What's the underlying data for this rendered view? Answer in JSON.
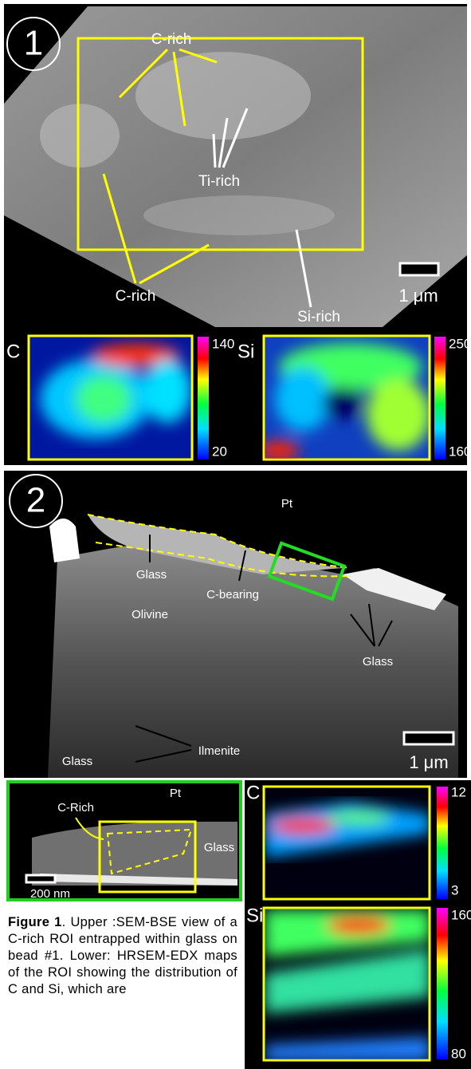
{
  "panel1": {
    "label": "1",
    "annotations": [
      "C-rich",
      "Ti-rich",
      "C-rich",
      "Si-rich"
    ],
    "scale_bar": "1 μm",
    "maps": [
      {
        "element": "C",
        "max": "140",
        "min": "20"
      },
      {
        "element": "Si",
        "max": "250",
        "min": "160"
      }
    ]
  },
  "panel2": {
    "label": "2",
    "annotations": [
      "Pt",
      "Glass",
      "C-bearing",
      "Olivine",
      "Glass",
      "Ilmenite",
      "Glass"
    ],
    "scale_bar": "1 μm",
    "inset": {
      "annotations": [
        "Pt",
        "C-Rich",
        "Glass"
      ],
      "scale_bar": "200 nm"
    },
    "maps": [
      {
        "element": "C",
        "max": "12",
        "min": "3"
      },
      {
        "element": "Si",
        "max": "160",
        "min": "80"
      }
    ]
  },
  "caption": {
    "label": "Figure 1",
    "text": ". Upper :SEM-BSE view of a C-rich ROI entrapped within glass on bead #1. Lower: HRSEM-EDX maps of the ROI showing the distribution of C and Si, which are"
  }
}
